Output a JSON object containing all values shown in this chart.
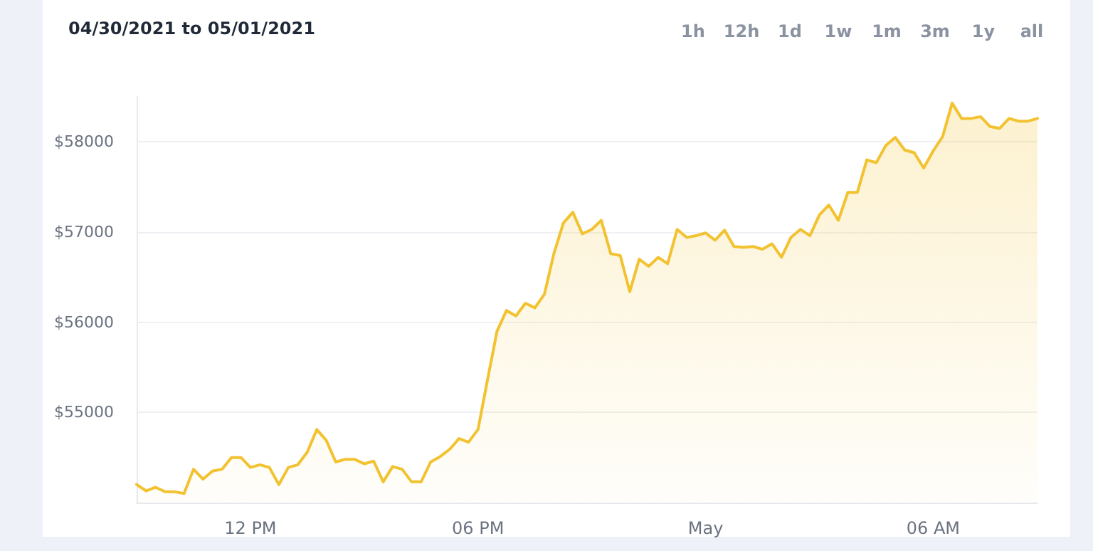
{
  "chart_data": {
    "type": "area",
    "title": "04/30/2021 to 05/01/2021",
    "annotations": [
      "1h",
      "12h",
      "1d",
      "1w",
      "1m",
      "3m",
      "1y",
      "all"
    ],
    "x": [
      "2021-04-30T09:00",
      "2021-04-30T09:15",
      "2021-04-30T09:30",
      "2021-04-30T09:45",
      "2021-04-30T10:00",
      "2021-04-30T10:15",
      "2021-04-30T10:30",
      "2021-04-30T10:45",
      "2021-04-30T11:00",
      "2021-04-30T11:15",
      "2021-04-30T11:30",
      "2021-04-30T11:45",
      "2021-04-30T12:00",
      "2021-04-30T12:15",
      "2021-04-30T12:30",
      "2021-04-30T12:45",
      "2021-04-30T13:00",
      "2021-04-30T13:15",
      "2021-04-30T13:30",
      "2021-04-30T13:45",
      "2021-04-30T14:00",
      "2021-04-30T14:15",
      "2021-04-30T14:30",
      "2021-04-30T14:45",
      "2021-04-30T15:00",
      "2021-04-30T15:15",
      "2021-04-30T15:30",
      "2021-04-30T15:45",
      "2021-04-30T16:00",
      "2021-04-30T16:15",
      "2021-04-30T16:30",
      "2021-04-30T16:45",
      "2021-04-30T17:00",
      "2021-04-30T17:15",
      "2021-04-30T17:30",
      "2021-04-30T17:45",
      "2021-04-30T18:00",
      "2021-04-30T18:15",
      "2021-04-30T18:30",
      "2021-04-30T18:45",
      "2021-04-30T19:00",
      "2021-04-30T19:15",
      "2021-04-30T19:30",
      "2021-04-30T19:45",
      "2021-04-30T20:00",
      "2021-04-30T20:15",
      "2021-04-30T20:30",
      "2021-04-30T20:45",
      "2021-04-30T21:00",
      "2021-04-30T21:15",
      "2021-04-30T21:30",
      "2021-04-30T21:45",
      "2021-04-30T22:00",
      "2021-04-30T22:15",
      "2021-04-30T22:30",
      "2021-04-30T22:45",
      "2021-04-30T23:00",
      "2021-04-30T23:15",
      "2021-04-30T23:30",
      "2021-04-30T23:45",
      "2021-05-01T00:00",
      "2021-05-01T00:15",
      "2021-05-01T00:30",
      "2021-05-01T00:45",
      "2021-05-01T01:00",
      "2021-05-01T01:15",
      "2021-05-01T01:30",
      "2021-05-01T01:45",
      "2021-05-01T02:00",
      "2021-05-01T02:15",
      "2021-05-01T02:30",
      "2021-05-01T02:45",
      "2021-05-01T03:00",
      "2021-05-01T03:15",
      "2021-05-01T03:30",
      "2021-05-01T03:45",
      "2021-05-01T04:00",
      "2021-05-01T04:15",
      "2021-05-01T04:30",
      "2021-05-01T04:45",
      "2021-05-01T05:00",
      "2021-05-01T05:15",
      "2021-05-01T05:30",
      "2021-05-01T05:45",
      "2021-05-01T06:00",
      "2021-05-01T06:15",
      "2021-05-01T06:30",
      "2021-05-01T06:45",
      "2021-05-01T07:00",
      "2021-05-01T07:15",
      "2021-05-01T07:30",
      "2021-05-01T07:45",
      "2021-05-01T08:00",
      "2021-05-01T08:15",
      "2021-05-01T08:30",
      "2021-05-01T08:45"
    ],
    "series": [
      {
        "color": "#f2c230",
        "values": [
          54200,
          54130,
          54170,
          54120,
          54120,
          54100,
          54370,
          54260,
          54350,
          54370,
          54500,
          54500,
          54390,
          54420,
          54390,
          54200,
          54390,
          54420,
          54560,
          54810,
          54690,
          54450,
          54480,
          54480,
          54430,
          54460,
          54230,
          54400,
          54370,
          54230,
          54230,
          54450,
          54510,
          54590,
          54710,
          54670,
          54810,
          55360,
          55900,
          56130,
          56070,
          56210,
          56160,
          56310,
          56760,
          57100,
          57220,
          56980,
          57030,
          57130,
          56760,
          56740,
          56340,
          56700,
          56620,
          56720,
          56650,
          57030,
          56940,
          56960,
          56990,
          56910,
          57020,
          56840,
          56830,
          56840,
          56810,
          56870,
          56720,
          56940,
          57030,
          56960,
          57190,
          57300,
          57130,
          57440,
          57440,
          57800,
          57770,
          57960,
          58050,
          57910,
          57880,
          57710,
          57900,
          58060,
          58430,
          58260,
          58260,
          58280,
          58170,
          58150,
          58260,
          58230,
          58230,
          58260
        ]
      }
    ],
    "xlim": [
      "2021-04-30T09:00",
      "2021-05-01T08:45"
    ],
    "xticks": [
      {
        "value": "2021-04-30T12:00",
        "label": "12 PM"
      },
      {
        "value": "2021-04-30T18:00",
        "label": "06 PM"
      },
      {
        "value": "2021-05-01T00:00",
        "label": "May"
      },
      {
        "value": "2021-05-01T06:00",
        "label": "06 AM"
      }
    ],
    "ylim": [
      54000,
      58500
    ],
    "yticks": [
      {
        "value": 55000,
        "label": "$55000"
      },
      {
        "value": 56000,
        "label": "$56000"
      },
      {
        "value": 57000,
        "label": "$57000"
      },
      {
        "value": 58000,
        "label": "$58000"
      }
    ],
    "grid": "y",
    "marker": "none",
    "line_style": "solid"
  }
}
